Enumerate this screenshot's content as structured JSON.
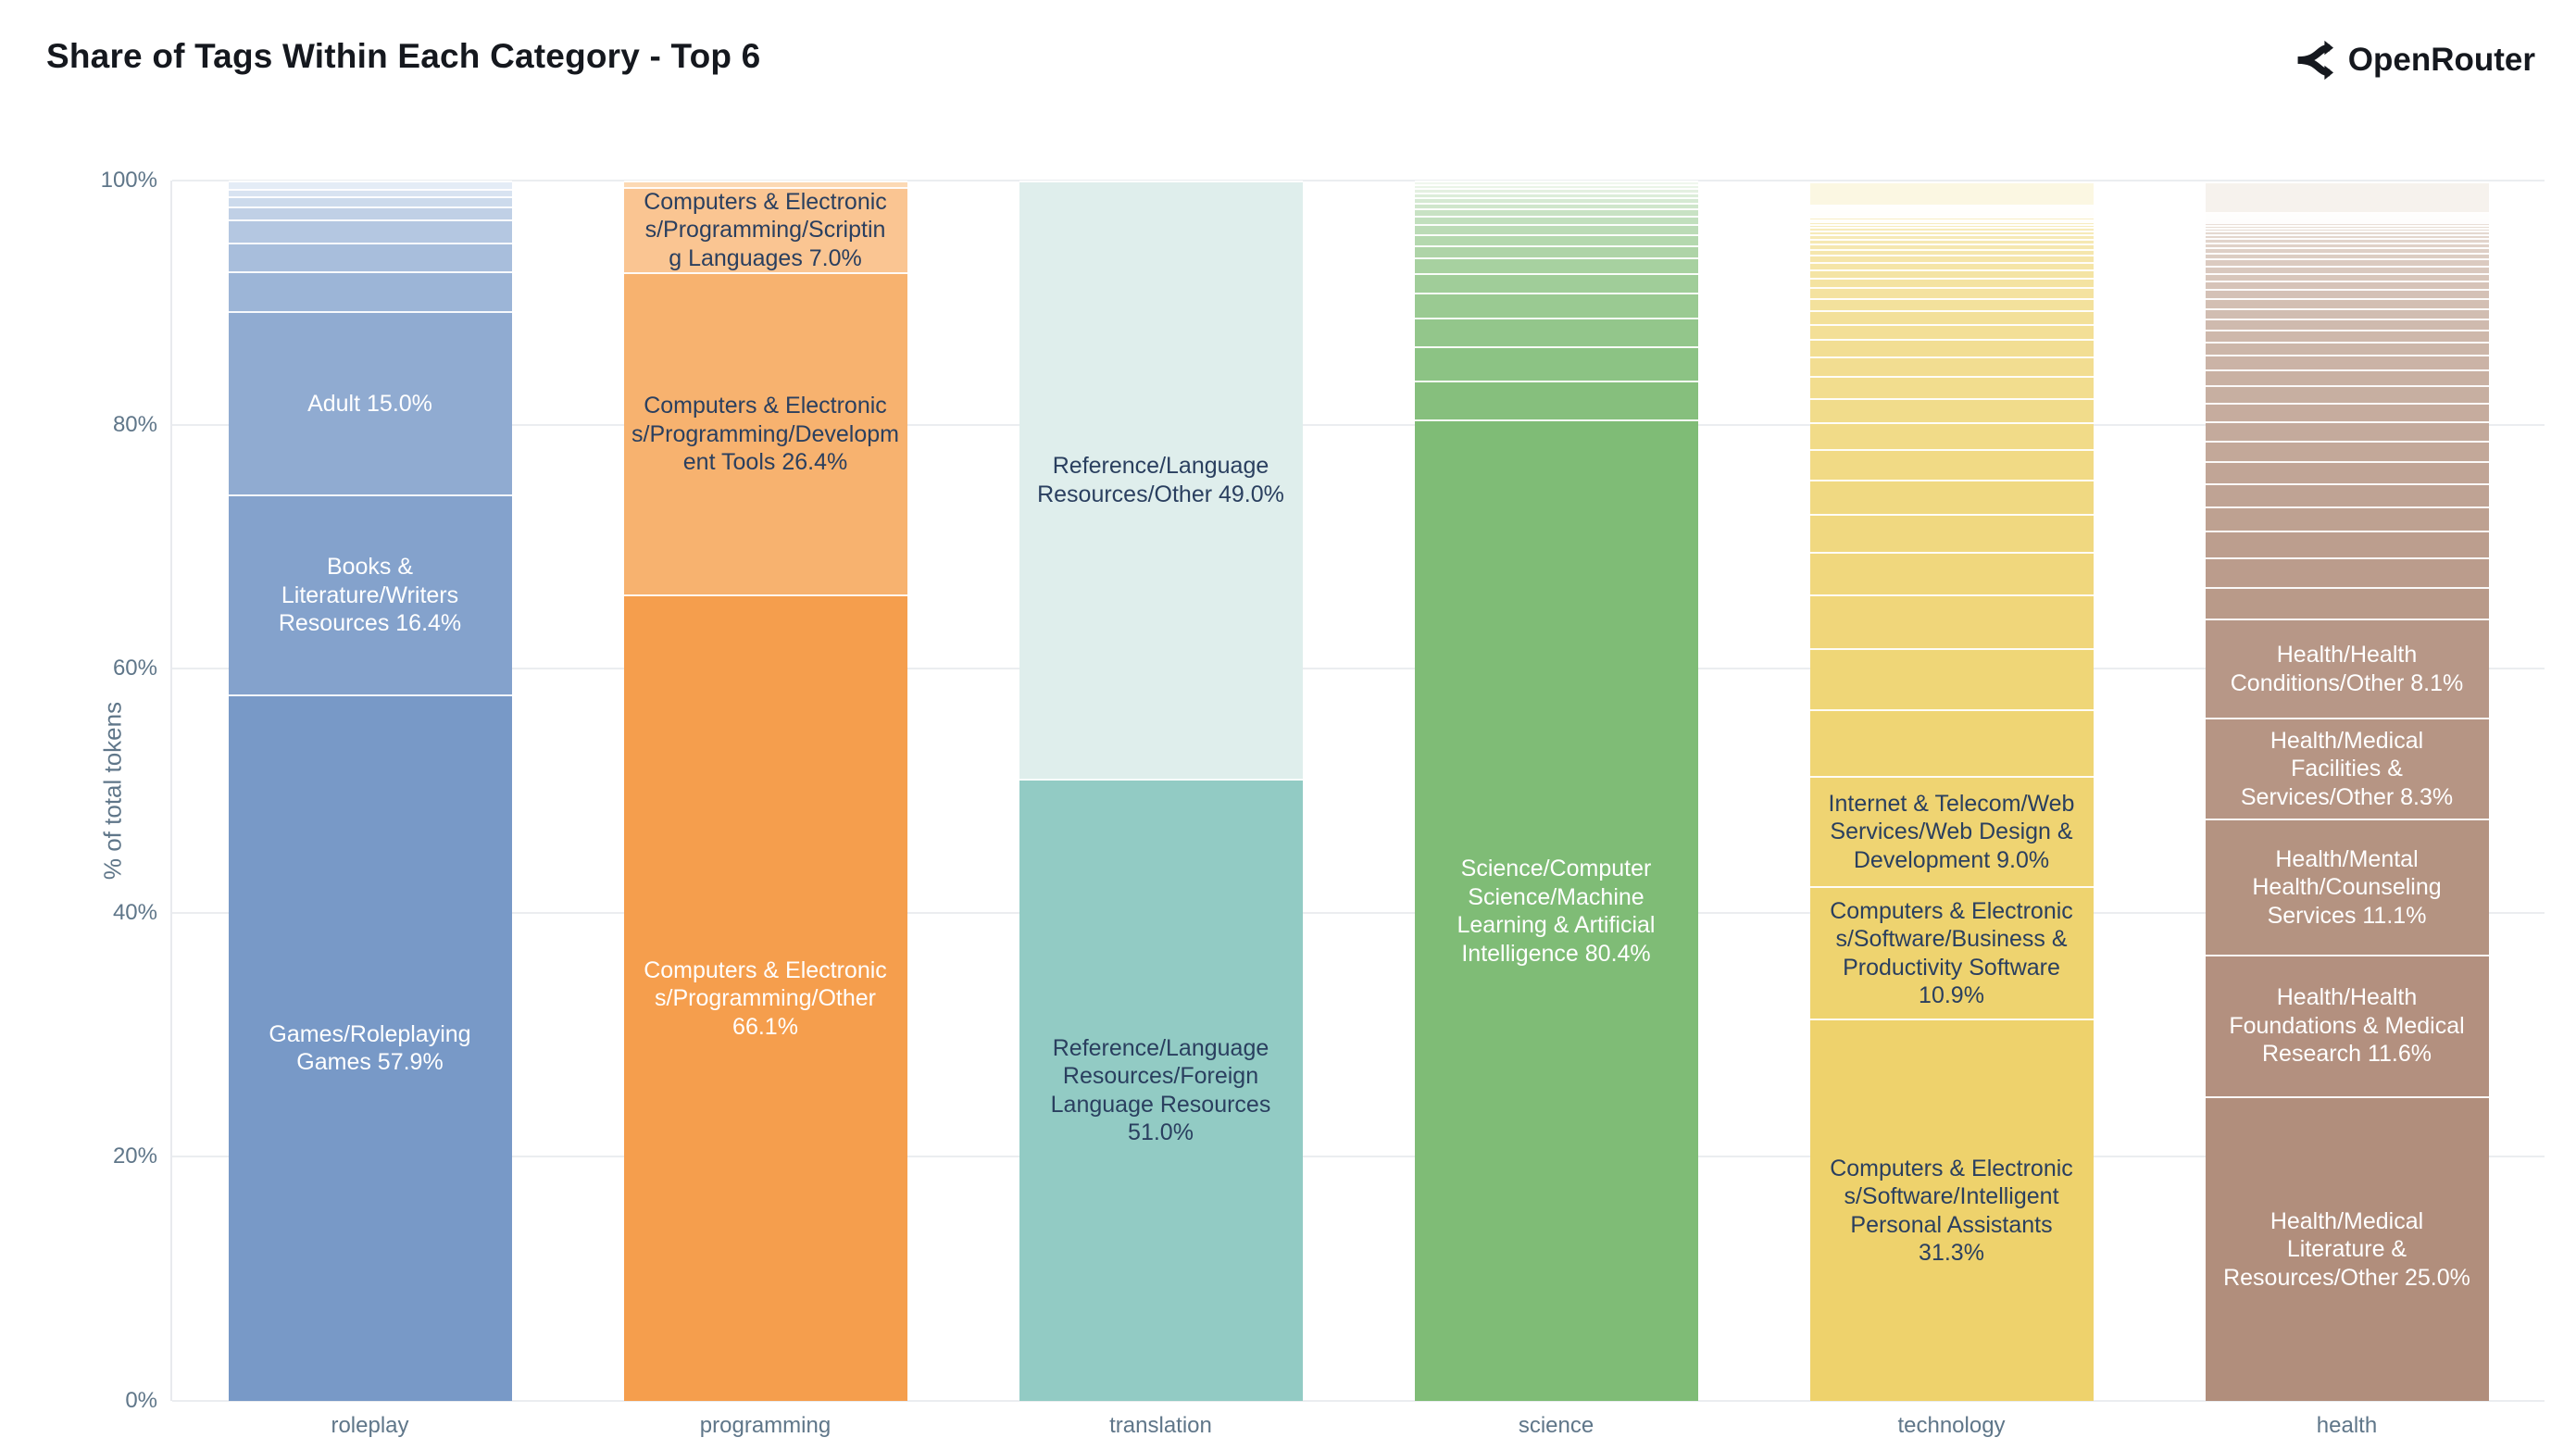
{
  "header": {
    "title": "Share of Tags Within Each Category - Top 6",
    "brand": "OpenRouter"
  },
  "colors": {
    "title_text": "#15181e",
    "axis_text": "#5f7689",
    "gridline": "#ebedf0",
    "dark_label_text": "#2a3f5f",
    "white_label_text": "#ffffff"
  },
  "chart_data": {
    "type": "bar",
    "stacked": true,
    "title": "Share of Tags Within Each Category - Top 6",
    "xlabel": "",
    "ylabel": "% of total tokens",
    "ylim": [
      0,
      100
    ],
    "yticks": [
      0,
      20,
      40,
      60,
      80,
      100
    ],
    "ytick_labels": [
      "0%",
      "20%",
      "40%",
      "60%",
      "80%",
      "100%"
    ],
    "grid": true,
    "legend": false,
    "categories": [
      "roleplay",
      "programming",
      "translation",
      "science",
      "technology",
      "health"
    ],
    "bars": [
      {
        "category": "roleplay",
        "color_dark": "#7899c7",
        "color_light": "#e4ecf6",
        "segments": [
          {
            "label": "Games/Roleplaying\nGames 57.9%",
            "value": 57.9,
            "text_color": "#ffffff"
          },
          {
            "label": "Books &\nLiterature/Writers\nResources 16.4%",
            "value": 16.4,
            "text_color": "#ffffff"
          },
          {
            "label": "Adult 15.0%",
            "value": 15.0,
            "text_color": "#ffffff"
          },
          {
            "value": 3.3
          },
          {
            "value": 2.3
          },
          {
            "value": 1.9
          },
          {
            "value": 1.1
          },
          {
            "value": 0.8
          },
          {
            "value": 0.65
          },
          {
            "value": 0.65
          }
        ]
      },
      {
        "category": "programming",
        "color_dark": "#f59e4d",
        "color_light": "#fcd9b4",
        "segments": [
          {
            "label": "Computers & Electronic\ns/Programming/Other\n66.1%",
            "value": 66.1,
            "text_color": "#ffffff"
          },
          {
            "label": "Computers & Electronic\ns/Programming/Developm\nent Tools 26.4%",
            "value": 26.4,
            "text_color": "#2a3f5f"
          },
          {
            "label": "Computers & Electronic\ns/Programming/Scriptin\ng Languages 7.0%",
            "value": 7.0,
            "text_color": "#2a3f5f"
          },
          {
            "value": 0.5
          }
        ]
      },
      {
        "category": "translation",
        "color_dark": "#92cbc4",
        "color_light": "#dfeeec",
        "segments": [
          {
            "label": "Reference/Language\nResources/Foreign\nLanguage Resources\n51.0%",
            "value": 51.0,
            "text_color": "#2a3f5f"
          },
          {
            "label": "Reference/Language\nResources/Other 49.0%",
            "value": 49.0,
            "text_color": "#2a3f5f"
          }
        ]
      },
      {
        "category": "science",
        "color_dark": "#7fbc76",
        "color_light": "#f0f7ee",
        "segments": [
          {
            "label": "Science/Computer\nScience/Machine\nLearning & Artificial\nIntelligence 80.4%",
            "value": 80.4,
            "text_color": "#ffffff"
          },
          {
            "value": 3.2
          },
          {
            "value": 2.8
          },
          {
            "value": 2.4
          },
          {
            "value": 2.0
          },
          {
            "value": 1.6
          },
          {
            "value": 1.3
          },
          {
            "value": 1.0
          },
          {
            "value": 0.9
          },
          {
            "value": 0.8
          },
          {
            "value": 0.7
          },
          {
            "value": 0.6
          },
          {
            "value": 0.5
          },
          {
            "value": 0.45
          },
          {
            "value": 0.4
          },
          {
            "value": 0.35
          },
          {
            "value": 0.3
          },
          {
            "value": 0.3
          }
        ]
      },
      {
        "category": "technology",
        "color_dark": "#eed26c",
        "color_light": "#fbf7e2",
        "segments": [
          {
            "label": "Computers & Electronic\ns/Software/Intelligent\nPersonal Assistants\n31.3%",
            "value": 31.3,
            "text_color": "#2a3f5f"
          },
          {
            "label": "Computers & Electronic\ns/Software/Business &\nProductivity Software\n10.9%",
            "value": 10.9,
            "text_color": "#2a3f5f"
          },
          {
            "label": "Internet & Telecom/Web\nServices/Web Design &\nDevelopment 9.0%",
            "value": 9.0,
            "text_color": "#2a3f5f"
          },
          {
            "value": 5.5
          },
          {
            "value": 5.0
          },
          {
            "value": 4.4
          },
          {
            "value": 3.5
          },
          {
            "value": 3.1
          },
          {
            "value": 2.8
          },
          {
            "value": 2.5
          },
          {
            "value": 2.2
          },
          {
            "value": 2.0
          },
          {
            "value": 1.8
          },
          {
            "value": 1.6
          },
          {
            "value": 1.4
          },
          {
            "value": 1.25
          },
          {
            "value": 1.1
          },
          {
            "value": 1.0
          },
          {
            "value": 0.9
          },
          {
            "value": 0.8
          },
          {
            "value": 0.7
          },
          {
            "value": 0.6
          },
          {
            "value": 0.55
          },
          {
            "value": 0.5
          },
          {
            "value": 0.45
          },
          {
            "value": 0.4
          },
          {
            "value": 0.35
          },
          {
            "value": 0.3
          },
          {
            "value": 0.28
          },
          {
            "value": 0.25
          },
          {
            "value": 0.22
          },
          {
            "value": 0.2
          },
          {
            "value": 0.18
          },
          {
            "value": 0.16
          },
          {
            "value": 0.14
          },
          {
            "value": 0.12
          },
          {
            "value": 0.1
          },
          {
            "value": 0.1
          },
          {
            "value": 0.1
          },
          {
            "value": 0.1
          },
          {
            "value": 0.1
          },
          {
            "value": 0.1
          },
          {
            "value": 1.9
          }
        ]
      },
      {
        "category": "health",
        "color_dark": "#b18e7c",
        "color_light": "#f6f2ed",
        "segments": [
          {
            "label": "Health/Medical\nLiterature &\nResources/Other 25.0%",
            "value": 25.0,
            "text_color": "#ffffff"
          },
          {
            "label": "Health/Health\nFoundations & Medical\nResearch 11.6%",
            "value": 11.6,
            "text_color": "#ffffff"
          },
          {
            "label": "Health/Mental\nHealth/Counseling\nServices 11.1%",
            "value": 11.1,
            "text_color": "#ffffff"
          },
          {
            "label": "Health/Medical\nFacilities &\nServices/Other 8.3%",
            "value": 8.3,
            "text_color": "#ffffff"
          },
          {
            "label": "Health/Health\nConditions/Other 8.1%",
            "value": 8.1,
            "text_color": "#ffffff"
          },
          {
            "value": 2.6
          },
          {
            "value": 2.4
          },
          {
            "value": 2.2
          },
          {
            "value": 2.0
          },
          {
            "value": 1.9
          },
          {
            "value": 1.8
          },
          {
            "value": 1.7
          },
          {
            "value": 1.6
          },
          {
            "value": 1.5
          },
          {
            "value": 1.4
          },
          {
            "value": 1.3
          },
          {
            "value": 1.2
          },
          {
            "value": 1.1
          },
          {
            "value": 1.0
          },
          {
            "value": 0.9
          },
          {
            "value": 0.85
          },
          {
            "value": 0.8
          },
          {
            "value": 0.75
          },
          {
            "value": 0.7
          },
          {
            "value": 0.65
          },
          {
            "value": 0.6
          },
          {
            "value": 0.55
          },
          {
            "value": 0.5
          },
          {
            "value": 0.45
          },
          {
            "value": 0.4
          },
          {
            "value": 0.35
          },
          {
            "value": 0.3
          },
          {
            "value": 0.28
          },
          {
            "value": 0.25
          },
          {
            "value": 0.22
          },
          {
            "value": 0.2
          },
          {
            "value": 0.18
          },
          {
            "value": 0.16
          },
          {
            "value": 0.14
          },
          {
            "value": 0.12
          },
          {
            "value": 0.1
          },
          {
            "value": 0.1
          },
          {
            "value": 0.1
          },
          {
            "value": 2.5
          }
        ]
      }
    ]
  }
}
